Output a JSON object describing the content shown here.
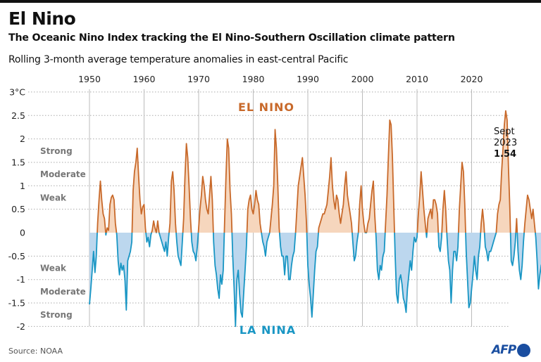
{
  "header": {
    "title": "El Nino",
    "subtitle": "The Oceanic Nino Index tracking the El Nino-Southern Oscillation climate pattern",
    "description": "Rolling 3-month average temperature anomalies in east-central Pacific"
  },
  "footer": {
    "source": "Source: NOAA",
    "logo_text": "AFP"
  },
  "chart_data": {
    "type": "area",
    "title": "El Nino",
    "subtitle": "The Oceanic Nino Index tracking the El Nino-Southern Oscillation climate pattern",
    "xlabel": "",
    "ylabel": "°C",
    "xlim": [
      1950,
      2024
    ],
    "ylim": [
      -2,
      3
    ],
    "x_ticks": [
      1950,
      1960,
      1970,
      1980,
      1990,
      2000,
      2010,
      2020
    ],
    "y_ticks": [
      -2,
      -1.5,
      -1,
      -0.5,
      0,
      0.5,
      1,
      1.5,
      2,
      2.5,
      3
    ],
    "y_tick_labels": [
      "-2",
      "-1.5",
      "-1",
      "-0.5",
      "0",
      "0.5",
      "1",
      "1.5",
      "2",
      "2.5",
      "3°C"
    ],
    "grid": "horizontal-dotted",
    "colors": {
      "positive": "#c8692a",
      "positive_fill": "#f6d6bd",
      "negative": "#1996c4",
      "negative_fill": "#bcd7ee"
    },
    "phase_labels": {
      "positive": "EL NINO",
      "negative": "LA NINA"
    },
    "intensity_bands": {
      "positive": [
        {
          "label": "Weak",
          "from": 0.5,
          "to": 1.0
        },
        {
          "label": "Moderate",
          "from": 1.0,
          "to": 1.5
        },
        {
          "label": "Strong",
          "from": 1.5,
          "to": 2.0
        }
      ],
      "negative": [
        {
          "label": "Weak",
          "from": -0.5,
          "to": -1.0
        },
        {
          "label": "Moderate",
          "from": -1.0,
          "to": -1.5
        },
        {
          "label": "Strong",
          "from": -1.5,
          "to": -2.0
        }
      ]
    },
    "annotation": {
      "line1": "Sept",
      "line2": "2023",
      "value": "1.54"
    },
    "series": [
      {
        "name": "Oceanic Nino Index",
        "start": 1950.0,
        "step": 0.25,
        "values": [
          -1.53,
          -1.2,
          -0.8,
          -0.4,
          -0.85,
          -0.5,
          0.2,
          0.7,
          1.1,
          0.7,
          0.4,
          0.3,
          -0.05,
          0.1,
          0.05,
          0.6,
          0.75,
          0.8,
          0.7,
          0.2,
          -0.05,
          -0.6,
          -0.9,
          -0.65,
          -0.8,
          -0.7,
          -1.0,
          -1.65,
          -0.6,
          -0.5,
          -0.4,
          -0.2,
          0.9,
          1.3,
          1.5,
          1.8,
          1.2,
          0.7,
          0.4,
          0.55,
          0.6,
          0.1,
          -0.2,
          -0.1,
          -0.3,
          -0.05,
          0.05,
          0.25,
          0.1,
          0.0,
          0.25,
          0.0,
          -0.1,
          -0.2,
          -0.3,
          -0.4,
          -0.2,
          -0.5,
          -0.1,
          0.2,
          1.1,
          1.3,
          0.9,
          0.2,
          -0.2,
          -0.5,
          -0.6,
          -0.7,
          -0.2,
          0.3,
          1.2,
          1.9,
          1.6,
          1.0,
          0.3,
          -0.2,
          -0.4,
          -0.45,
          -0.6,
          -0.3,
          0.1,
          0.5,
          0.8,
          1.2,
          1.0,
          0.7,
          0.5,
          0.4,
          0.8,
          1.2,
          0.7,
          -0.2,
          -0.7,
          -0.9,
          -1.2,
          -1.4,
          -0.9,
          -1.1,
          -0.8,
          0.2,
          1.2,
          2.0,
          1.8,
          0.9,
          0.4,
          -0.5,
          -1.2,
          -2.0,
          -1.0,
          -0.8,
          -1.3,
          -1.7,
          -1.8,
          -1.3,
          -0.8,
          -0.3,
          0.5,
          0.7,
          0.8,
          0.5,
          0.4,
          0.6,
          0.9,
          0.7,
          0.6,
          0.2,
          0.0,
          -0.2,
          -0.3,
          -0.5,
          -0.2,
          -0.1,
          0.0,
          0.3,
          0.6,
          1.0,
          2.2,
          1.8,
          1.0,
          0.1,
          -0.3,
          -0.5,
          -0.5,
          -0.9,
          -0.5,
          -0.5,
          -1.0,
          -1.0,
          -0.7,
          -0.5,
          -0.4,
          0.0,
          0.5,
          1.0,
          1.2,
          1.4,
          1.6,
          1.2,
          0.8,
          0.2,
          -0.7,
          -1.1,
          -1.4,
          -1.8,
          -1.3,
          -0.8,
          -0.4,
          -0.3,
          0.1,
          0.2,
          0.3,
          0.4,
          0.4,
          0.5,
          0.6,
          0.9,
          1.2,
          1.6,
          1.0,
          0.7,
          0.5,
          0.8,
          0.7,
          0.4,
          0.2,
          0.4,
          0.6,
          1.0,
          1.3,
          0.8,
          0.6,
          0.4,
          0.2,
          -0.2,
          -0.6,
          -0.5,
          -0.2,
          0.0,
          0.6,
          1.0,
          0.5,
          0.2,
          0.0,
          0.0,
          0.2,
          0.3,
          0.6,
          0.9,
          1.1,
          0.4,
          -0.1,
          -0.8,
          -1.0,
          -0.7,
          -0.8,
          -0.5,
          -0.4,
          0.2,
          0.8,
          1.6,
          2.4,
          2.3,
          1.6,
          0.5,
          -0.5,
          -1.3,
          -1.5,
          -1.0,
          -0.9,
          -1.1,
          -1.4,
          -1.5,
          -1.7,
          -1.2,
          -0.9,
          -0.6,
          -0.8,
          -0.4,
          -0.1,
          -0.2,
          -0.1,
          0.4,
          0.8,
          1.3,
          0.9,
          0.5,
          0.2,
          -0.1,
          0.3,
          0.4,
          0.5,
          0.3,
          0.7,
          0.7,
          0.6,
          0.4,
          -0.3,
          -0.4,
          -0.1,
          0.5,
          0.9,
          0.5,
          -0.1,
          -0.6,
          -0.8,
          -1.5,
          -0.8,
          -0.4,
          -0.4,
          -0.6,
          -0.3,
          0.5,
          1.0,
          1.5,
          1.3,
          0.6,
          -0.4,
          -1.0,
          -1.6,
          -1.5,
          -1.2,
          -0.9,
          -0.5,
          -0.8,
          -1.0,
          -0.5,
          -0.3,
          0.2,
          0.5,
          0.2,
          -0.3,
          -0.4,
          -0.6,
          -0.4,
          -0.4,
          -0.3,
          -0.2,
          -0.1,
          0.0,
          0.4,
          0.6,
          0.7,
          1.3,
          1.8,
          2.3,
          2.6,
          2.4,
          1.4,
          0.5,
          -0.6,
          -0.7,
          -0.5,
          -0.2,
          0.3,
          -0.4,
          -0.8,
          -1.0,
          -0.7,
          -0.2,
          0.2,
          0.5,
          0.8,
          0.7,
          0.5,
          0.3,
          0.5,
          0.2,
          -0.1,
          -0.6,
          -1.2,
          -0.9,
          -0.7,
          -0.6,
          -0.8,
          -1.2,
          -0.9,
          -1.0,
          -1.0,
          -0.8,
          -0.9,
          -1.0,
          -0.5,
          0.0,
          0.6,
          1.1,
          1.54
        ]
      }
    ]
  }
}
